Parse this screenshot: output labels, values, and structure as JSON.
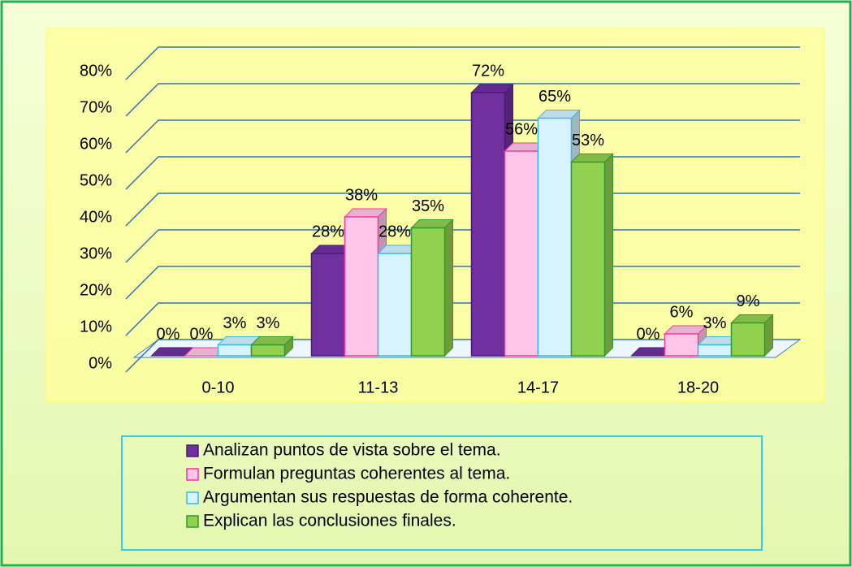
{
  "chart_data": {
    "type": "bar3d",
    "categories": [
      "0-10",
      "11-13",
      "14-17",
      "18-20"
    ],
    "series": [
      {
        "name": "Analizan puntos de vista sobre el tema.",
        "color": "#7030a0",
        "values": [
          0,
          28,
          72,
          0
        ],
        "value_labels": [
          "0%",
          "28%",
          "72%",
          "0%"
        ]
      },
      {
        "name": "Formulan preguntas coherentes al tema.",
        "color": "#ffc6ea",
        "values": [
          0,
          38,
          56,
          6
        ],
        "value_labels": [
          "0%",
          "38%",
          "56%",
          "6%"
        ]
      },
      {
        "name": "Argumentan sus respuestas de forma coherente.",
        "color": "#d6f3ff",
        "values": [
          3,
          28,
          65,
          3
        ],
        "value_labels": [
          "3%",
          "28%",
          "65%",
          "3%"
        ]
      },
      {
        "name": "Explican las conclusiones finales.",
        "color": "#92d050",
        "values": [
          3,
          35,
          53,
          9
        ],
        "value_labels": [
          "3%",
          "35%",
          "53%",
          "9%"
        ]
      }
    ],
    "ylim": [
      0,
      80
    ],
    "yticks": [
      {
        "value": 0,
        "label": "0%"
      },
      {
        "value": 10,
        "label": "10%"
      },
      {
        "value": 20,
        "label": "20%"
      },
      {
        "value": 30,
        "label": "30%"
      },
      {
        "value": 40,
        "label": "40%"
      },
      {
        "value": 50,
        "label": "50%"
      },
      {
        "value": 60,
        "label": "60%"
      },
      {
        "value": 70,
        "label": "70%"
      },
      {
        "value": 80,
        "label": "80%"
      }
    ],
    "grid": true
  }
}
